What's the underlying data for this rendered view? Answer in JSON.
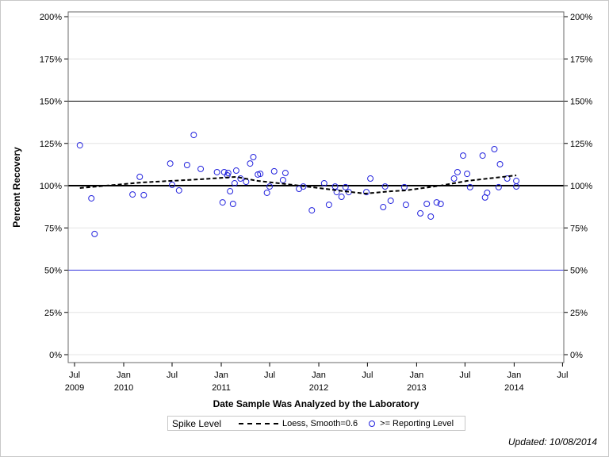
{
  "chart_data": {
    "type": "scatter",
    "title": "",
    "xlabel": "Date Sample Was Analyzed by the Laboratory",
    "ylabel": "Percent Recovery",
    "ylim": [
      0,
      200
    ],
    "xlim": [
      "2009-06-20",
      "2014-07-20"
    ],
    "y_ticks": [
      "0%",
      "25%",
      "50%",
      "75%",
      "100%",
      "125%",
      "150%",
      "175%",
      "200%"
    ],
    "x_ticks": [
      {
        "date": "2009-07-01",
        "label": "Jul",
        "year": "2009"
      },
      {
        "date": "2010-01-01",
        "label": "Jan",
        "year": "2010"
      },
      {
        "date": "2010-07-01",
        "label": "Jul",
        "year": ""
      },
      {
        "date": "2011-01-01",
        "label": "Jan",
        "year": "2011"
      },
      {
        "date": "2011-07-01",
        "label": "Jul",
        "year": ""
      },
      {
        "date": "2012-01-01",
        "label": "Jan",
        "year": "2012"
      },
      {
        "date": "2012-07-01",
        "label": "Jul",
        "year": ""
      },
      {
        "date": "2013-01-01",
        "label": "Jan",
        "year": "2013"
      },
      {
        "date": "2013-07-01",
        "label": "Jul",
        "year": ""
      },
      {
        "date": "2014-01-01",
        "label": "Jan",
        "year": "2014"
      },
      {
        "date": "2014-07-01",
        "label": "Jul",
        "year": ""
      }
    ],
    "grid": true,
    "reference_lines": [
      {
        "y": 150,
        "color": "#000000"
      },
      {
        "y": 100,
        "color": "#000000",
        "bold": true
      },
      {
        "y": 50,
        "color": "#3333dd"
      }
    ],
    "series": [
      {
        "name": ">= Reporting Level",
        "type": "scatter",
        "color": "#2222dd",
        "points": [
          [
            "2009-07-21",
            123.9
          ],
          [
            "2009-09-02",
            92.5
          ],
          [
            "2009-09-14",
            71.4
          ],
          [
            "2010-02-03",
            94.8
          ],
          [
            "2010-03-02",
            105.2
          ],
          [
            "2010-03-17",
            94.4
          ],
          [
            "2010-06-24",
            113.1
          ],
          [
            "2010-07-01",
            100.5
          ],
          [
            "2010-07-27",
            97.2
          ],
          [
            "2010-08-26",
            112.2
          ],
          [
            "2010-09-20",
            130.0
          ],
          [
            "2010-10-16",
            109.9
          ],
          [
            "2010-12-16",
            108.0
          ],
          [
            "2011-01-06",
            90.1
          ],
          [
            "2011-01-12",
            108.0
          ],
          [
            "2011-01-24",
            106.1
          ],
          [
            "2011-01-27",
            107.5
          ],
          [
            "2011-02-03",
            96.7
          ],
          [
            "2011-02-14",
            89.2
          ],
          [
            "2011-02-20",
            101.4
          ],
          [
            "2011-02-26",
            108.9
          ],
          [
            "2011-03-14",
            104.2
          ],
          [
            "2011-04-04",
            102.3
          ],
          [
            "2011-04-19",
            113.1
          ],
          [
            "2011-05-01",
            116.9
          ],
          [
            "2011-05-18",
            106.6
          ],
          [
            "2011-05-27",
            107.0
          ],
          [
            "2011-06-21",
            95.8
          ],
          [
            "2011-07-01",
            99.5
          ],
          [
            "2011-07-18",
            108.5
          ],
          [
            "2011-08-20",
            103.3
          ],
          [
            "2011-08-29",
            107.5
          ],
          [
            "2011-10-19",
            98.1
          ],
          [
            "2011-11-04",
            99.5
          ],
          [
            "2011-12-06",
            85.4
          ],
          [
            "2012-01-21",
            101.4
          ],
          [
            "2012-02-08",
            88.7
          ],
          [
            "2012-03-02",
            99.5
          ],
          [
            "2012-03-08",
            96.2
          ],
          [
            "2012-03-26",
            93.4
          ],
          [
            "2012-04-10",
            99.1
          ],
          [
            "2012-04-22",
            96.2
          ],
          [
            "2012-06-27",
            96.2
          ],
          [
            "2012-07-12",
            104.2
          ],
          [
            "2012-08-29",
            87.3
          ],
          [
            "2012-09-05",
            99.5
          ],
          [
            "2012-09-26",
            91.1
          ],
          [
            "2012-11-16",
            99.1
          ],
          [
            "2012-11-22",
            88.7
          ],
          [
            "2013-01-15",
            83.6
          ],
          [
            "2013-02-08",
            89.2
          ],
          [
            "2013-02-23",
            81.7
          ],
          [
            "2013-03-17",
            90.1
          ],
          [
            "2013-04-01",
            89.2
          ],
          [
            "2013-05-21",
            104.2
          ],
          [
            "2013-06-03",
            108.0
          ],
          [
            "2013-06-24",
            117.8
          ],
          [
            "2013-07-09",
            107.0
          ],
          [
            "2013-07-20",
            99.1
          ],
          [
            "2013-09-05",
            117.8
          ],
          [
            "2013-09-14",
            93.0
          ],
          [
            "2013-09-22",
            95.8
          ],
          [
            "2013-10-19",
            121.6
          ],
          [
            "2013-11-04",
            99.1
          ],
          [
            "2013-11-09",
            112.7
          ],
          [
            "2013-12-06",
            104.2
          ],
          [
            "2014-01-09",
            102.8
          ],
          [
            "2014-01-09",
            99.5
          ]
        ]
      },
      {
        "name": "Loess, Smooth=0.6",
        "type": "line",
        "dashed": true,
        "color": "#000000",
        "points": [
          [
            "2009-07-21",
            98.6
          ],
          [
            "2010-03-10",
            101.9
          ],
          [
            "2010-10-18",
            103.8
          ],
          [
            "2011-02-26",
            105.2
          ],
          [
            "2011-05-18",
            102.8
          ],
          [
            "2011-08-29",
            101.0
          ],
          [
            "2011-12-06",
            99.1
          ],
          [
            "2012-03-10",
            97.2
          ],
          [
            "2012-06-22",
            95.3
          ],
          [
            "2012-09-28",
            96.7
          ],
          [
            "2012-11-22",
            97.2
          ],
          [
            "2013-03-31",
            100.0
          ],
          [
            "2013-07-08",
            102.8
          ],
          [
            "2014-01-09",
            106.1
          ]
        ]
      }
    ],
    "legend": {
      "title": "Spike Level",
      "placement": "bottom",
      "items": [
        "Loess, Smooth=0.6",
        ">= Reporting Level"
      ]
    }
  },
  "footer": {
    "updated": "Updated: 10/08/2014"
  }
}
